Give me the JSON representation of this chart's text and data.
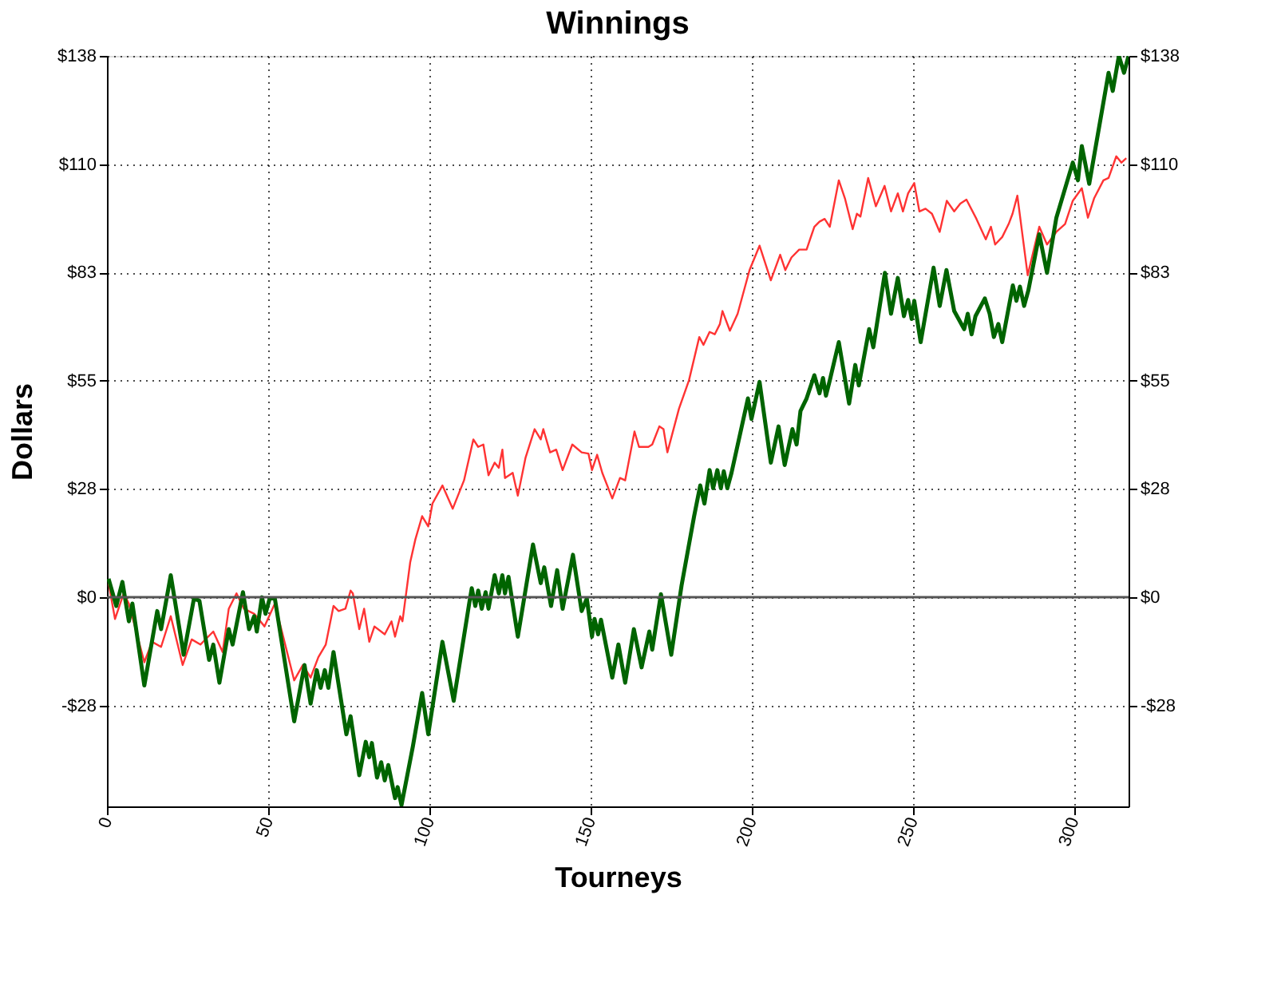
{
  "chart_data": {
    "type": "line",
    "title": "Winnings",
    "xlabel": "Tourneys",
    "ylabel": "Dollars",
    "xlim": [
      0,
      317
    ],
    "xticks": [
      0,
      50,
      100,
      150,
      200,
      250,
      300
    ],
    "ylim": [
      -53.1,
      137.5
    ],
    "yticks": [
      {
        "value": 137.5,
        "label": "$138"
      },
      {
        "value": 110,
        "label": "$110"
      },
      {
        "value": 82.5,
        "label": "$83"
      },
      {
        "value": 55,
        "label": "$55"
      },
      {
        "value": 27.5,
        "label": "$28"
      },
      {
        "value": 0,
        "label": "$0"
      },
      {
        "value": -27.5,
        "label": "-$28"
      }
    ],
    "y2lim": [
      -53.1,
      137.5
    ],
    "y2ticks": [
      {
        "value": 137.5,
        "label": "$138"
      },
      {
        "value": 110,
        "label": "$110"
      },
      {
        "value": 82.5,
        "label": "$83"
      },
      {
        "value": 55,
        "label": "$55"
      },
      {
        "value": 27.5,
        "label": "$28"
      },
      {
        "value": 0,
        "label": "$0"
      },
      {
        "value": -27.5,
        "label": "-$28"
      }
    ],
    "grid": true,
    "marker": "none",
    "line_style": "solid",
    "ref_lines": [
      {
        "axis": "y",
        "value": 0,
        "color": "#555555",
        "line_style": "solid"
      }
    ],
    "series": [
      {
        "color": "#ff3333",
        "x": [
          0.5,
          2.5,
          5.2,
          6.8,
          11.6,
          14.0,
          16.8,
          19.8,
          23.5,
          26.3,
          29.0,
          33.0,
          35.9,
          37.8,
          40.2,
          42.5,
          45.7,
          48.9,
          52.1,
          54.9,
          58.1,
          60.8,
          63.2,
          65.6,
          67.9,
          70.3,
          71.9,
          74.0,
          75.6,
          76.3,
          78.3,
          79.8,
          81.4,
          83.0,
          86.2,
          88.3,
          89.4,
          91.0,
          91.7,
          94.1,
          95.7,
          97.8,
          99.7,
          101.0,
          104.1,
          107.3,
          110.8,
          113.7,
          115.2,
          116.8,
          118.4,
          120.3,
          121.6,
          122.7,
          123.5,
          125.9,
          127.5,
          129.9,
          132.7,
          134.6,
          135.4,
          137.5,
          139.4,
          141.4,
          144.4,
          147.3,
          149.4,
          150.5,
          152.1,
          153.7,
          156.8,
          159.2,
          160.8,
          163.7,
          165.1,
          168.0,
          169.2,
          171.4,
          172.7,
          173.9,
          177.5,
          180.6,
          183.8,
          185.1,
          187.0,
          188.6,
          190.2,
          191.0,
          193.3,
          195.7,
          199.4,
          202.5,
          206.0,
          208.9,
          210.5,
          212.4,
          214.8,
          217.1,
          219.5,
          221.1,
          222.7,
          224.3,
          227.1,
          229.0,
          231.4,
          232.7,
          233.8,
          236.2,
          238.6,
          241.3,
          243.3,
          245.4,
          247.0,
          248.6,
          250.5,
          252.1,
          254.0,
          256.0,
          258.4,
          260.6,
          262.9,
          264.8,
          266.7,
          269.8,
          272.7,
          274.3,
          275.6,
          277.8,
          279.8,
          281.0,
          282.5,
          285.7,
          289.3,
          291.7,
          294.6,
          297.3,
          299.7,
          302.5,
          304.4,
          306.3,
          309.2,
          310.8,
          313.2,
          314.8,
          316.3
        ],
        "values": [
          3.6,
          -5.5,
          1.0,
          -1.6,
          -16.5,
          -11.3,
          -12.6,
          -4.8,
          -17.2,
          -10.7,
          -12.0,
          -8.7,
          -13.9,
          -2.9,
          1.0,
          -2.9,
          -4.2,
          -7.4,
          -1.6,
          -10.7,
          -21.1,
          -17.2,
          -20.4,
          -15.2,
          -12.0,
          -2.2,
          -3.5,
          -2.9,
          1.7,
          1.0,
          -8.1,
          -2.9,
          -11.3,
          -7.4,
          -9.4,
          -6.1,
          -10.0,
          -4.8,
          -6.1,
          8.9,
          14.7,
          20.6,
          18.0,
          23.8,
          28.4,
          22.5,
          29.7,
          40.1,
          38.2,
          38.8,
          31.0,
          34.2,
          32.9,
          37.5,
          30.3,
          31.6,
          25.8,
          35.5,
          42.7,
          40.1,
          42.7,
          36.8,
          37.5,
          32.3,
          38.8,
          36.8,
          36.5,
          32.3,
          36.2,
          31.6,
          25.1,
          30.3,
          29.7,
          42.1,
          38.2,
          38.2,
          38.8,
          43.4,
          42.7,
          36.8,
          47.9,
          55.1,
          66.1,
          64.1,
          67.4,
          66.8,
          69.4,
          72.7,
          67.7,
          72.0,
          83.1,
          89.3,
          80.5,
          87.0,
          83.1,
          86.3,
          88.3,
          88.3,
          94.1,
          95.4,
          96.1,
          94.1,
          105.9,
          101.3,
          93.5,
          97.4,
          96.7,
          106.5,
          99.3,
          104.5,
          98.0,
          102.6,
          98.0,
          102.6,
          105.2,
          98.0,
          98.7,
          97.4,
          92.8,
          100.7,
          98.0,
          100.0,
          101.0,
          96.1,
          90.9,
          94.1,
          89.6,
          91.5,
          94.8,
          97.4,
          102.0,
          81.8,
          94.1,
          89.6,
          92.8,
          94.8,
          100.7,
          103.9,
          96.4,
          101.3,
          105.9,
          106.5,
          112.0,
          110.4,
          111.5
        ]
      },
      {
        "color": "#006400",
        "x": [
          0.5,
          2.9,
          4.8,
          6.8,
          7.9,
          11.6,
          15.6,
          16.8,
          19.8,
          23.8,
          27.0,
          28.7,
          31.7,
          33.0,
          34.9,
          37.8,
          39.0,
          42.2,
          44.1,
          45.7,
          46.5,
          48.1,
          49.2,
          50.5,
          52.1,
          58.1,
          61.3,
          63.2,
          65.1,
          66.3,
          67.6,
          68.7,
          70.3,
          74.3,
          75.6,
          78.3,
          80.3,
          81.4,
          82.2,
          83.8,
          85.1,
          86.2,
          87.3,
          89.4,
          90.2,
          91.4,
          94.9,
          97.8,
          99.7,
          104.1,
          107.6,
          112.4,
          113.2,
          114.3,
          115.2,
          116.3,
          117.5,
          118.4,
          120.3,
          121.6,
          122.7,
          123.5,
          124.6,
          127.5,
          132.2,
          134.6,
          135.7,
          137.8,
          139.7,
          141.4,
          144.6,
          147.3,
          148.9,
          150.5,
          151.3,
          152.4,
          153.3,
          156.8,
          158.7,
          160.8,
          163.5,
          165.9,
          168.3,
          169.2,
          171.9,
          175.1,
          178.3,
          182.2,
          184.1,
          185.4,
          187.0,
          188.1,
          189.4,
          190.5,
          191.4,
          192.5,
          193.8,
          198.9,
          200.0,
          202.5,
          206.0,
          208.4,
          210.3,
          212.7,
          214.0,
          215.2,
          217.1,
          219.5,
          221.1,
          222.2,
          223.1,
          224.3,
          227.1,
          230.3,
          232.2,
          233.3,
          236.5,
          237.8,
          241.4,
          243.3,
          245.4,
          247.3,
          248.6,
          249.7,
          250.5,
          252.5,
          256.5,
          258.4,
          260.5,
          262.9,
          266.0,
          267.1,
          268.3,
          269.5,
          272.4,
          273.9,
          275.2,
          276.6,
          277.8,
          281.1,
          282.2,
          283.3,
          284.6,
          285.9,
          289.3,
          291.7,
          294.6,
          299.7,
          301.3,
          302.5,
          304.8,
          310.8,
          312.1,
          314.0,
          315.6,
          317.0
        ],
        "values": [
          4.7,
          -2.2,
          3.9,
          -6.1,
          -1.6,
          -22.4,
          -3.5,
          -8.1,
          5.6,
          -14.6,
          -0.3,
          -0.9,
          -15.9,
          -12.0,
          -21.7,
          -8.1,
          -12.0,
          1.3,
          -8.1,
          -4.8,
          -8.7,
          0,
          -4.2,
          -0.3,
          -0.3,
          -31.5,
          -17.2,
          -27.0,
          -18.5,
          -23.0,
          -18.5,
          -23.0,
          -13.9,
          -34.8,
          -30.2,
          -45.2,
          -36.7,
          -40.6,
          -37.0,
          -45.8,
          -41.9,
          -46.5,
          -42.6,
          -51.0,
          -48.2,
          -52.8,
          -38.0,
          -24.3,
          -34.8,
          -11.3,
          -26.3,
          -1.6,
          2.3,
          -2.2,
          1.7,
          -2.9,
          1.3,
          -2.9,
          5.6,
          1.0,
          5.6,
          1.0,
          5.2,
          -10.0,
          13.4,
          3.6,
          7.6,
          -2.2,
          6.9,
          -2.9,
          10.8,
          -3.5,
          -0.3,
          -10.0,
          -5.5,
          -9.4,
          -5.7,
          -20.4,
          -12.0,
          -21.7,
          -8.1,
          -17.8,
          -8.7,
          -13.3,
          0.8,
          -14.6,
          3.0,
          20.6,
          28.4,
          23.8,
          32.3,
          27.7,
          32.3,
          27.7,
          32.0,
          27.7,
          31.6,
          50.5,
          45.3,
          54.7,
          34.2,
          43.4,
          33.6,
          42.7,
          38.8,
          47.3,
          50.5,
          56.4,
          51.8,
          55.7,
          51.2,
          55.1,
          64.8,
          49.2,
          59.0,
          53.8,
          68.1,
          63.5,
          82.4,
          72.0,
          81.1,
          71.4,
          75.5,
          70.7,
          75.3,
          64.8,
          83.7,
          74.0,
          83.1,
          72.7,
          68.1,
          72.0,
          66.8,
          71.4,
          75.9,
          72.0,
          66.1,
          69.4,
          64.8,
          79.2,
          75.3,
          78.9,
          74.0,
          77.9,
          92.2,
          82.4,
          96.4,
          110.4,
          105.9,
          114.6,
          105.0,
          133.2,
          128.6,
          137.5,
          133.2,
          137.5
        ]
      }
    ]
  }
}
